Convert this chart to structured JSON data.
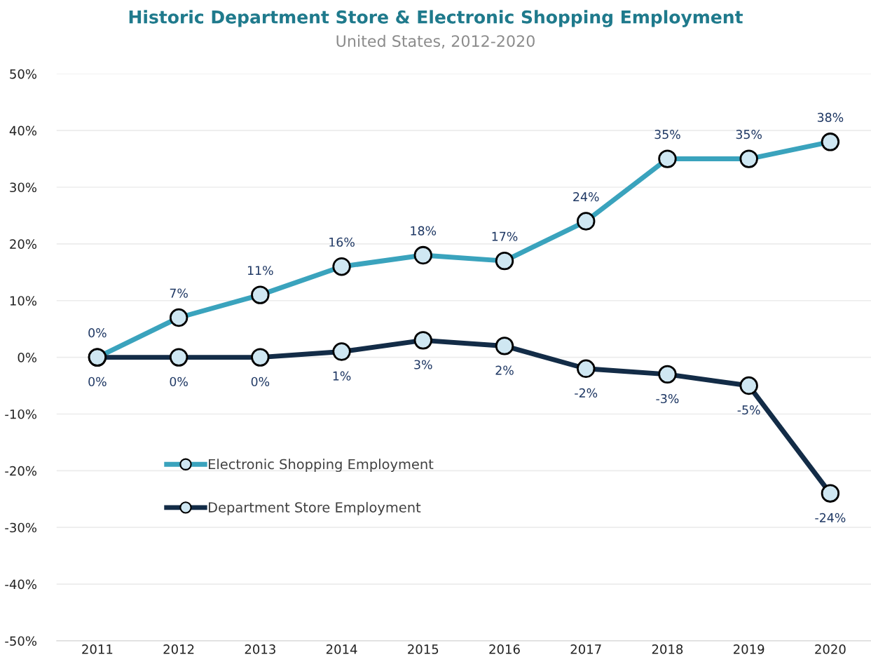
{
  "chart_data": {
    "type": "line",
    "title": "Historic Department Store & Electronic Shopping Employment",
    "subtitle": "United States, 2012-2020",
    "categories": [
      "2011",
      "2012",
      "2013",
      "2014",
      "2015",
      "2016",
      "2017",
      "2018",
      "2019",
      "2020"
    ],
    "series": [
      {
        "name": "Electronic Shopping Employment",
        "color": "#3aa3bd",
        "values": [
          0,
          7,
          11,
          16,
          18,
          17,
          24,
          35,
          35,
          38
        ],
        "value_labels": [
          "0%",
          "7%",
          "11%",
          "16%",
          "18%",
          "17%",
          "24%",
          "35%",
          "35%",
          "38%"
        ]
      },
      {
        "name": "Department Store Employment",
        "color": "#132c47",
        "values": [
          0,
          0,
          0,
          1,
          3,
          2,
          -2,
          -3,
          -5,
          -24
        ],
        "value_labels": [
          "0%",
          "0%",
          "0%",
          "1%",
          "3%",
          "2%",
          "-2%",
          "-3%",
          "-5%",
          "-24%"
        ]
      }
    ],
    "ylim": [
      -50,
      50
    ],
    "yticks": [
      {
        "value": 50,
        "label": "50%"
      },
      {
        "value": 40,
        "label": "40%"
      },
      {
        "value": 30,
        "label": "30%"
      },
      {
        "value": 20,
        "label": "20%"
      },
      {
        "value": 10,
        "label": "10%"
      },
      {
        "value": 0,
        "label": "0%"
      },
      {
        "value": -10,
        "label": "-10%"
      },
      {
        "value": -20,
        "label": "-20%"
      },
      {
        "value": -30,
        "label": "-30%"
      },
      {
        "value": -40,
        "label": "-40%"
      },
      {
        "value": -50,
        "label": "-50%"
      }
    ],
    "grid": "y",
    "legend": "bottom left",
    "marker": "circle",
    "line_style": "solid"
  }
}
